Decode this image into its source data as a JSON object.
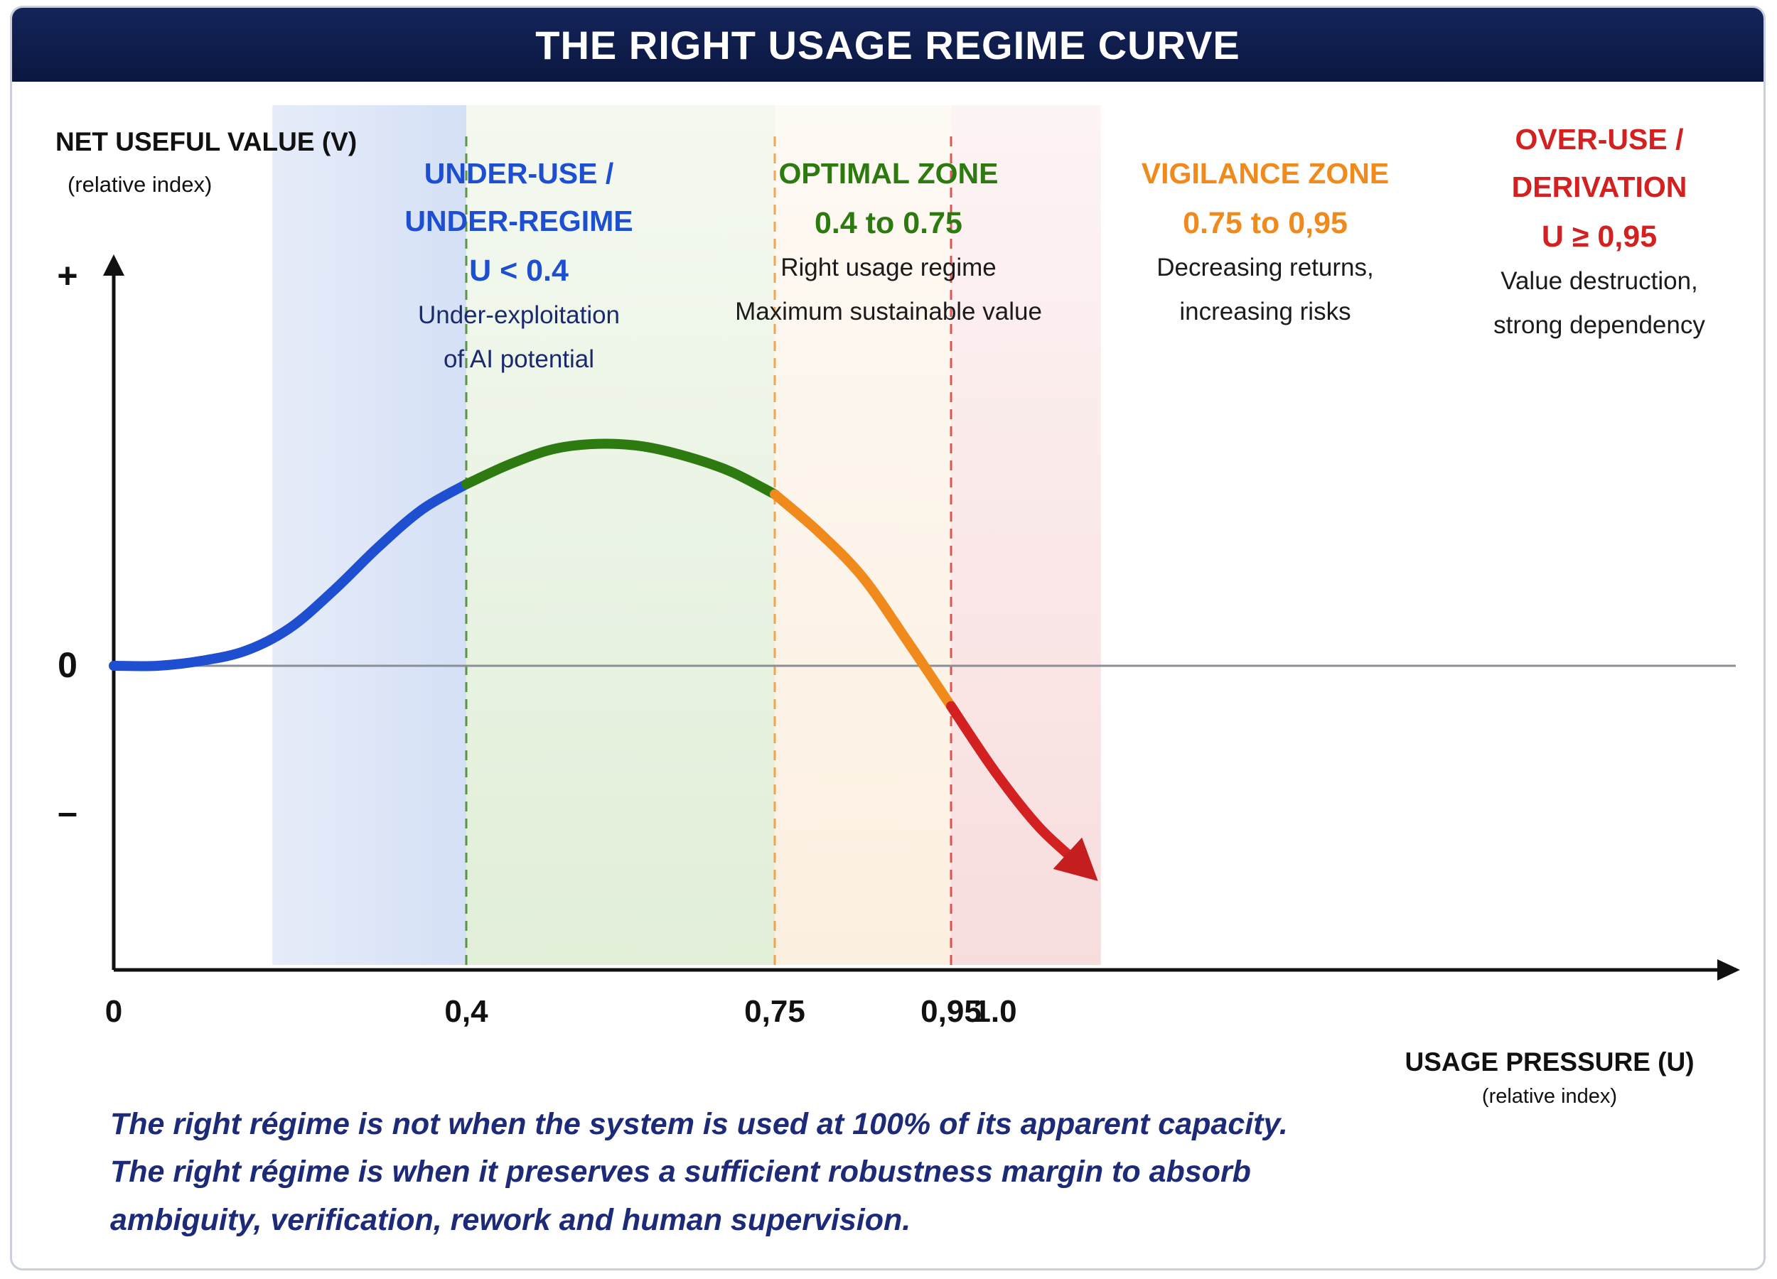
{
  "title": "THE RIGHT USAGE REGIME CURVE",
  "colors": {
    "header_bg": "#0f1d4d",
    "under_use": "#1f4fd1",
    "optimal": "#2d7a10",
    "vigilance": "#f08a1c",
    "over_use": "#d32020",
    "footer_text": "#1d2a78"
  },
  "chart_data": {
    "type": "line",
    "ylabel": "NET USEFUL VALUE (V)",
    "ylabel_sub": "(relative index)",
    "xlabel": "USAGE PRESSURE (U)",
    "xlabel_sub": "(relative index)",
    "y_ticks": [
      "+",
      "0",
      "–"
    ],
    "x_ticks": [
      {
        "value": 0,
        "label": "0"
      },
      {
        "value": 0.4,
        "label": "0,4"
      },
      {
        "value": 0.75,
        "label": "0,75"
      },
      {
        "value": 0.95,
        "label": "0,95"
      },
      {
        "value": 1.0,
        "label": "1.0"
      }
    ],
    "xlim": [
      0,
      1.12
    ],
    "ylim": [
      -1.0,
      1.15
    ],
    "grid": false,
    "zone_boundaries": [
      0.4,
      0.75,
      0.95
    ],
    "zones": [
      {
        "heading": "UNDER-USE /\nUNDER-REGIME",
        "range": "U < 0.4",
        "description": "Under-exploitation\nof AI potential",
        "color": "#1f4fd1",
        "from": 0.18,
        "to": 0.4
      },
      {
        "heading": "OPTIMAL ZONE",
        "range": "0.4 to 0.75",
        "description": "Right usage regime\nMaximum sustainable value",
        "color": "#2d7a10",
        "from": 0.4,
        "to": 0.75
      },
      {
        "heading": "VIGILANCE ZONE",
        "range": "0.75 to 0,95",
        "description": "Decreasing returns,\nincreasing risks",
        "color": "#f08a1c",
        "from": 0.75,
        "to": 0.95
      },
      {
        "heading": "OVER-USE /\nDERIVATION",
        "range": "U ≥ 0,95",
        "description": "Value destruction,\nstrong dependency",
        "color": "#d32020",
        "from": 0.95,
        "to": 1.12
      }
    ],
    "series": [
      {
        "x": [
          0,
          0.05,
          0.1,
          0.15,
          0.2,
          0.25,
          0.3,
          0.35,
          0.4,
          0.45,
          0.5,
          0.55,
          0.6,
          0.65,
          0.7,
          0.75,
          0.8,
          0.85,
          0.9,
          0.95,
          1.0,
          1.05,
          1.1
        ],
        "y": [
          0.0,
          0.0,
          0.02,
          0.06,
          0.15,
          0.3,
          0.47,
          0.62,
          0.72,
          0.8,
          0.86,
          0.88,
          0.87,
          0.83,
          0.77,
          0.68,
          0.53,
          0.35,
          0.1,
          -0.16,
          -0.42,
          -0.64,
          -0.8
        ]
      }
    ]
  },
  "footer": {
    "line1": "The right régime is not when the system is used at 100% of its apparent capacity.",
    "line2": "The right régime is when it preserves a sufficient robustness margin to absorb",
    "line3": "ambiguity, verification, rework and human supervision."
  }
}
